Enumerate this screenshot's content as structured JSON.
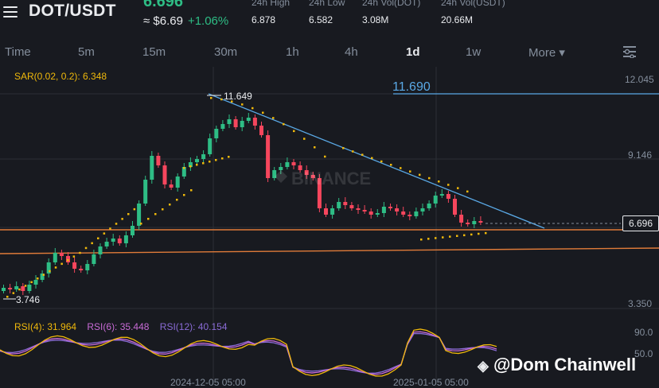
{
  "header": {
    "pair": "DOT/USDT",
    "last_price": "6.696",
    "usd_price": "≈ $6.69",
    "change": "+1.06%",
    "stats": [
      {
        "label": "24h High",
        "value": "6.878"
      },
      {
        "label": "24h Low",
        "value": "6.582"
      },
      {
        "label": "24h Vol(DOT)",
        "value": "3.08M"
      },
      {
        "label": "24h Vol(USDT)",
        "value": "20.66M"
      }
    ]
  },
  "timeframes": {
    "items": [
      "Time",
      "5m",
      "15m",
      "30m",
      "1h",
      "4h",
      "1d",
      "1w",
      "More ▾"
    ],
    "active": "1d"
  },
  "chart": {
    "sar_label": "SAR(0.02, 0.2): 6.348",
    "price_axis": [
      "12.045",
      "9.146",
      "3.350"
    ],
    "rsi_axis": [
      "90.0",
      "50.0"
    ],
    "high_label": "11.649",
    "low_label": "3.746",
    "line_label": "11.690",
    "current_price": "6.696",
    "date_labels": [
      "2024-12-05 05:00",
      "2025-01-05 05:00"
    ],
    "watermark_logo": "BINANCE",
    "rsi": {
      "rsi4": "RSI(4): 31.964",
      "rsi6": "RSI(6): 35.448",
      "rsi12": "RSI(12): 40.154"
    },
    "colors": {
      "up": "#2ebd85",
      "down": "#f6465d",
      "sar": "#f0b90b",
      "trendline": "#5aa9e6",
      "support": "#e07b39",
      "rsi4": "#f0b90b",
      "rsi6": "#c86bd6",
      "rsi12": "#8a6bd6"
    }
  },
  "credit": "@Dom Chainwell"
}
